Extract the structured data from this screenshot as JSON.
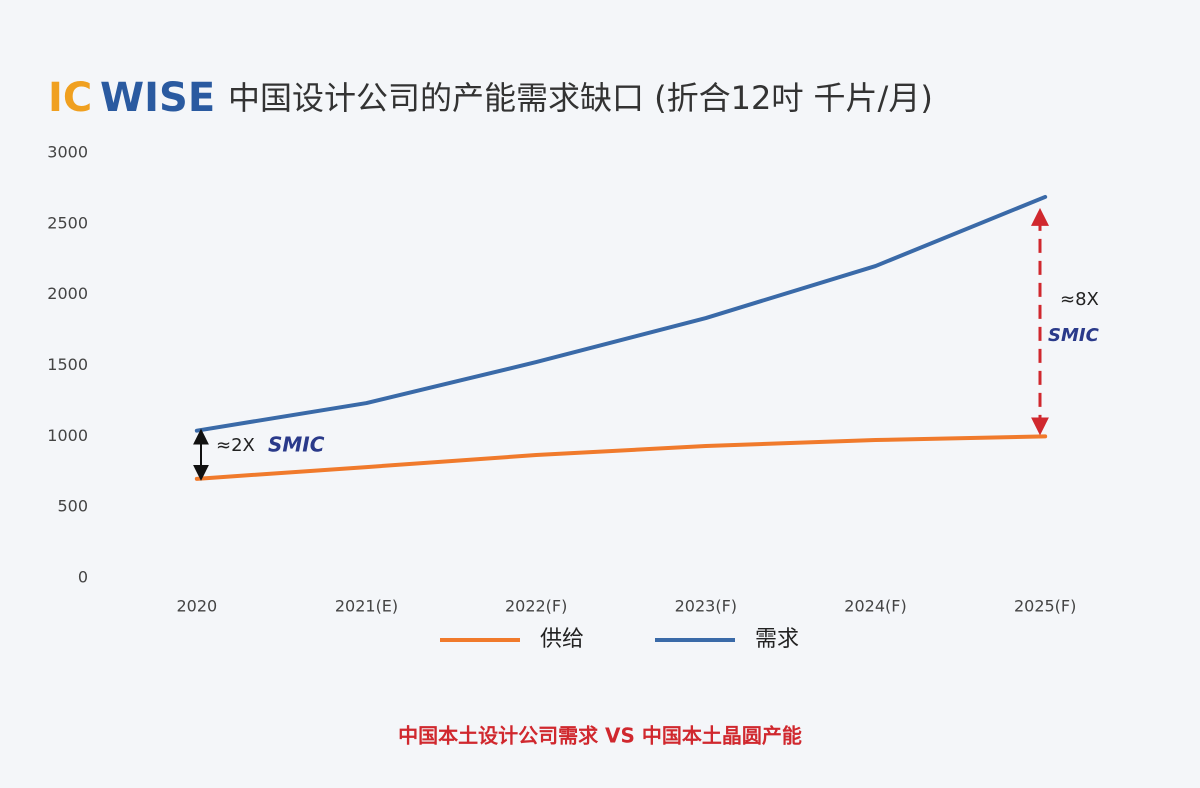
{
  "chart_data": {
    "type": "line",
    "logo": [
      "IC",
      "WISE"
    ],
    "title": "中国设计公司的产能需求缺口 (折合12吋 千片/月)",
    "categories": [
      "2020",
      "2021(E)",
      "2022(F)",
      "2023(F)",
      "2024(F)",
      "2025(F)"
    ],
    "series": [
      {
        "name": "供给",
        "color": "#f07a2c",
        "values": [
          700,
          783,
          868,
          932,
          974,
          1000
        ]
      },
      {
        "name": "需求",
        "color": "#3a6aa8",
        "values": [
          1040,
          1235,
          1524,
          1835,
          2202,
          2690
        ]
      }
    ],
    "ylim": [
      0,
      3000
    ],
    "yticks": [
      0,
      500,
      1000,
      1500,
      2000,
      2500,
      3000
    ],
    "grid": false,
    "annotations": [
      "≈2X",
      "SMIC",
      "≈8X",
      "SMIC"
    ],
    "caption": "中国本土设计公司需求 VS 中国本土晶圆产能"
  }
}
